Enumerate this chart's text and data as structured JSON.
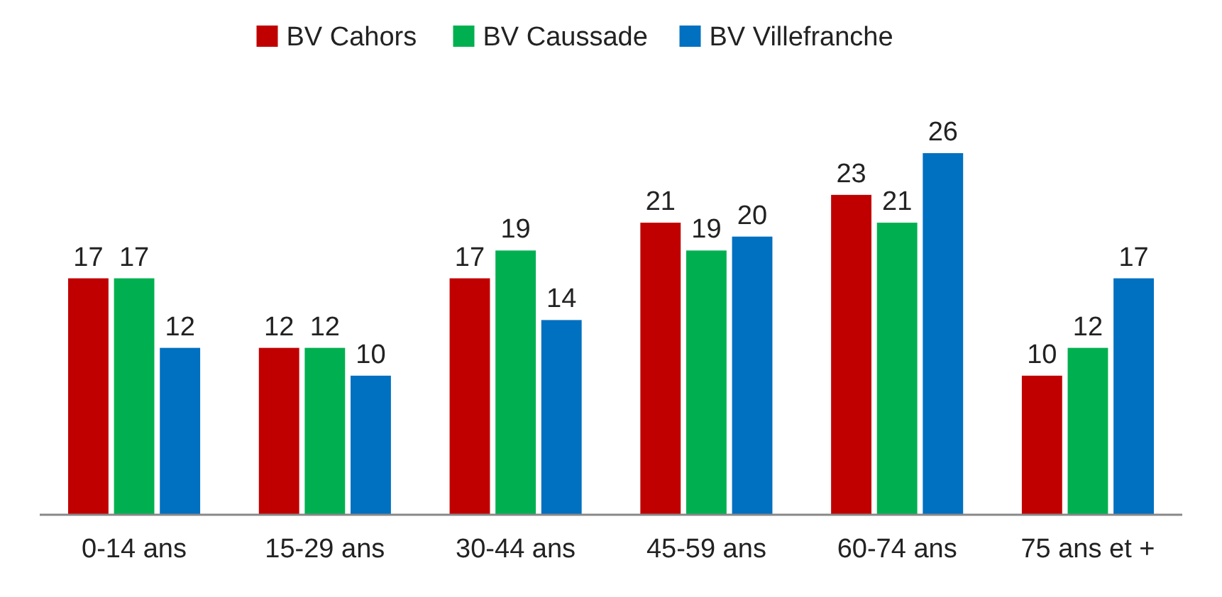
{
  "chart_data": {
    "type": "bar",
    "categories": [
      "0-14 ans",
      "15-29 ans",
      "30-44 ans",
      "45-59 ans",
      "60-74 ans",
      "75 ans et +"
    ],
    "series": [
      {
        "name": "BV Cahors",
        "color": "#c00000",
        "values": [
          17,
          12,
          17,
          21,
          23,
          10
        ]
      },
      {
        "name": "BV Caussade",
        "color": "#00b050",
        "values": [
          17,
          12,
          19,
          19,
          21,
          12
        ]
      },
      {
        "name": "BV Villefranche",
        "color": "#0070c0",
        "values": [
          12,
          10,
          14,
          20,
          26,
          17
        ]
      }
    ],
    "data_labels": true,
    "legend": "top",
    "grid": false
  }
}
